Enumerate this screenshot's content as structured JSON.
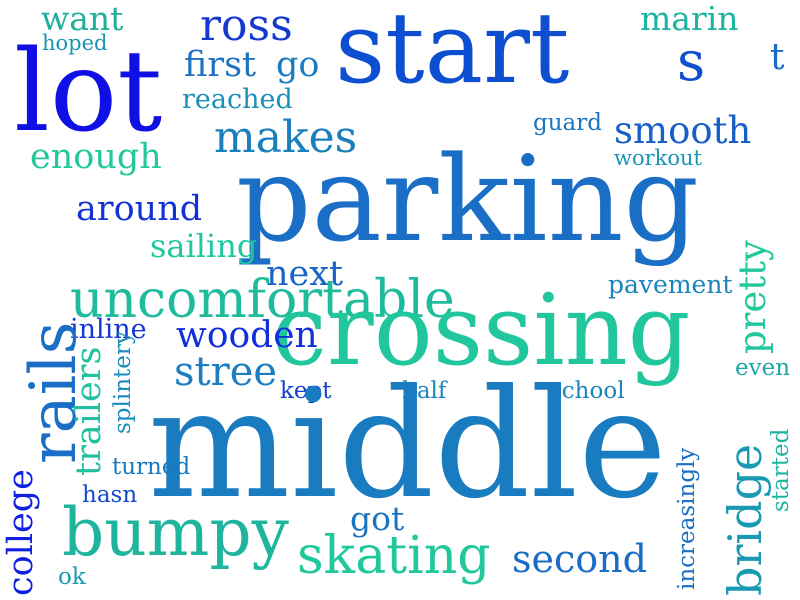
{
  "words": [
    {
      "text": "want",
      "color": "#1fb09a"
    },
    {
      "text": "hoped",
      "color": "#1a96b0"
    },
    {
      "text": "lot",
      "color": "#1010e6"
    },
    {
      "text": "ross",
      "color": "#1438d0"
    },
    {
      "text": "start",
      "color": "#0d4fd0"
    },
    {
      "text": "marin",
      "color": "#1ab4a0"
    },
    {
      "text": "s",
      "color": "#1050d0"
    },
    {
      "text": "t",
      "color": "#1a6ac8"
    },
    {
      "text": "first",
      "color": "#1f72c2"
    },
    {
      "text": "go",
      "color": "#1a7cbf"
    },
    {
      "text": "reached",
      "color": "#1a8fb8"
    },
    {
      "text": "makes",
      "color": "#1a80bd"
    },
    {
      "text": "guard",
      "color": "#1a76c0"
    },
    {
      "text": "smooth",
      "color": "#1860c8"
    },
    {
      "text": "workout",
      "color": "#1a94b4"
    },
    {
      "text": "enough",
      "color": "#22c89c"
    },
    {
      "text": "parking",
      "color": "#1a6ec6"
    },
    {
      "text": "around",
      "color": "#1232d8"
    },
    {
      "text": "sailing",
      "color": "#20c8a0"
    },
    {
      "text": "next",
      "color": "#1a64c6"
    },
    {
      "text": "pavement",
      "color": "#1a84bc"
    },
    {
      "text": "uncomfortable",
      "color": "#1fbc9c"
    },
    {
      "text": "crossing",
      "color": "#22c69c"
    },
    {
      "text": "inline",
      "color": "#1438d2"
    },
    {
      "text": "wooden",
      "color": "#1030dc"
    },
    {
      "text": "stree",
      "color": "#1a7ec0"
    },
    {
      "text": "even",
      "color": "#1ea6a8"
    },
    {
      "text": "kept",
      "color": "#1440d0"
    },
    {
      "text": "half",
      "color": "#1a86ba"
    },
    {
      "text": "school",
      "color": "#1a84bc"
    },
    {
      "text": "middle",
      "color": "#1a7cc0"
    },
    {
      "text": "turned",
      "color": "#1a78c0"
    },
    {
      "text": "hasn",
      "color": "#1448d0"
    },
    {
      "text": "got",
      "color": "#1a74c2"
    },
    {
      "text": "bumpy",
      "color": "#1fb49c"
    },
    {
      "text": "skating",
      "color": "#22c89c"
    },
    {
      "text": "second",
      "color": "#1a6cc6"
    },
    {
      "text": "ok",
      "color": "#1a9cb0"
    },
    {
      "text": "rails",
      "color": "#1a6ec6"
    },
    {
      "text": "pretty",
      "color": "#22c89c"
    },
    {
      "text": "trailers",
      "color": "#20c0a0"
    },
    {
      "text": "splintery",
      "color": "#1a8cba"
    },
    {
      "text": "bridge",
      "color": "#1a9ab2"
    },
    {
      "text": "started",
      "color": "#1fb4a0"
    },
    {
      "text": "college",
      "color": "#1020e0"
    },
    {
      "text": "increasingly",
      "color": "#1a70c4"
    }
  ]
}
